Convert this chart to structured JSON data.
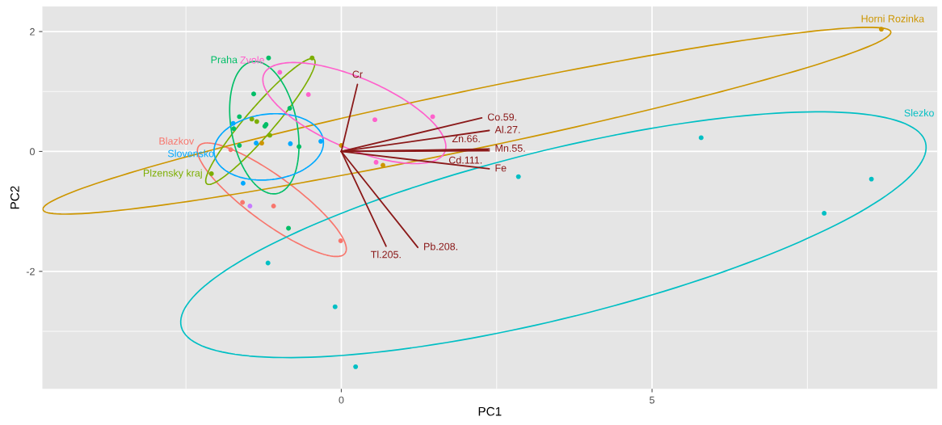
{
  "chart_data": {
    "type": "scatter",
    "xlabel": "PC1",
    "ylabel": "PC2",
    "xlim": [
      -4.81,
      9.59
    ],
    "ylim": [
      -3.96,
      2.42
    ],
    "xticks": [
      0,
      5
    ],
    "yticks": [
      -2,
      0,
      2
    ],
    "grid": true,
    "series": [
      {
        "name": "Blazkov",
        "color": "#f8766d",
        "marker": "circle",
        "x": [
          -1.78,
          -1.59,
          -1.09,
          -0.01
        ],
        "values": [
          0.03,
          -0.85,
          -0.91,
          -1.49
        ]
      },
      {
        "name": "Horni Rozinka",
        "color": "#cd9600",
        "marker": "circle",
        "x": [
          -1.28,
          0.0,
          0.67,
          8.69
        ],
        "values": [
          0.14,
          0.1,
          -0.23,
          2.04
        ]
      },
      {
        "name": "Plzensky kraj",
        "color": "#7cae00",
        "marker": "circle",
        "x": [
          -0.47,
          -1.36,
          -1.15,
          -1.44,
          -2.09
        ],
        "values": [
          1.56,
          0.5,
          0.27,
          0.54,
          -0.37
        ]
      },
      {
        "name": "Praha",
        "color": "#00be67",
        "marker": "circle",
        "x": [
          -1.17,
          -1.41,
          -1.64,
          -0.83,
          -1.21,
          -1.23,
          -1.73,
          -1.64,
          -0.68,
          -0.85
        ],
        "values": [
          1.56,
          0.96,
          0.58,
          0.72,
          0.45,
          0.42,
          0.38,
          0.1,
          0.08,
          -1.28
        ]
      },
      {
        "name": "Slezko",
        "color": "#00bfc4",
        "marker": "circle",
        "x": [
          -1.18,
          -0.1,
          0.23,
          2.85,
          5.79,
          8.53,
          7.77
        ],
        "values": [
          -1.86,
          -2.59,
          -3.59,
          -0.42,
          0.23,
          -0.46,
          -1.03
        ]
      },
      {
        "name": "Slovensko",
        "color": "#00a9ff",
        "marker": "circle",
        "x": [
          -1.74,
          -1.37,
          -0.82,
          -0.33,
          -1.58
        ],
        "values": [
          0.47,
          0.14,
          0.13,
          0.17,
          -0.53
        ]
      },
      {
        "color": "#c77cff",
        "marker": "circle",
        "x": [
          -1.47
        ],
        "values": [
          -0.91
        ]
      },
      {
        "name": "Zvole",
        "color": "#ff61cc",
        "marker": "circle",
        "x": [
          -0.99,
          -0.53,
          0.54,
          1.47,
          0.56
        ],
        "values": [
          1.32,
          0.95,
          0.53,
          0.58,
          -0.18
        ]
      },
      {
        "type": "line",
        "marker": "none",
        "name": "Cr",
        "color": "#8b1a1a",
        "x": [
          0,
          0.26
        ],
        "values": [
          0,
          1.12
        ]
      },
      {
        "type": "line",
        "marker": "none",
        "name": "Co.59.",
        "color": "#8b1a1a",
        "x": [
          0,
          2.26
        ],
        "values": [
          0,
          0.56
        ]
      },
      {
        "type": "line",
        "marker": "none",
        "name": "Al.27.",
        "color": "#8b1a1a",
        "x": [
          0,
          2.38
        ],
        "values": [
          0,
          0.35
        ]
      },
      {
        "type": "line",
        "marker": "none",
        "name": "Mn.55.",
        "color": "#8b1a1a",
        "x": [
          0,
          2.38
        ],
        "values": [
          0,
          0.04
        ]
      },
      {
        "type": "line",
        "marker": "none",
        "name": "Zn.66.",
        "color": "#8b1a1a",
        "x": [
          0,
          2.35
        ],
        "values": [
          0,
          0.03
        ]
      },
      {
        "type": "line",
        "marker": "none",
        "name": "Cd.111.",
        "color": "#8b1a1a",
        "x": [
          0,
          2.38
        ],
        "values": [
          0,
          0.01
        ]
      },
      {
        "type": "line",
        "marker": "none",
        "name": "Fe",
        "color": "#8b1a1a",
        "x": [
          0,
          2.38
        ],
        "values": [
          0,
          -0.29
        ]
      },
      {
        "type": "line",
        "marker": "none",
        "name": "Tl.205.",
        "color": "#8b1a1a",
        "x": [
          0,
          0.72
        ],
        "values": [
          0,
          -1.58
        ]
      },
      {
        "type": "line",
        "marker": "none",
        "name": "Pb.208.",
        "color": "#8b1a1a",
        "x": [
          0,
          1.23
        ],
        "values": [
          0,
          -1.6
        ]
      }
    ]
  }
}
